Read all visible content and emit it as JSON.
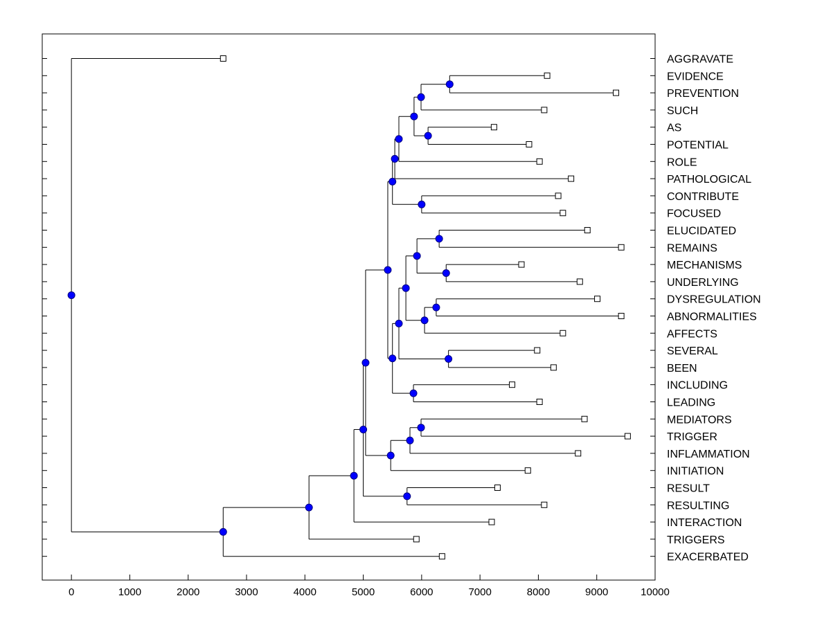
{
  "chart_data": {
    "type": "dendrogram",
    "title": "",
    "xlabel": "",
    "ylabel": "",
    "xlim": [
      -500,
      10000
    ],
    "xticks": [
      0,
      1000,
      2000,
      3000,
      4000,
      5000,
      6000,
      7000,
      8000,
      9000,
      10000
    ],
    "grid": false,
    "leaves": [
      {
        "label": "AGGRAVATE",
        "x": 2600
      },
      {
        "label": "EVIDENCE",
        "x": 8150
      },
      {
        "label": "PREVENTION",
        "x": 9330
      },
      {
        "label": "SUCH",
        "x": 8100
      },
      {
        "label": "AS",
        "x": 7240
      },
      {
        "label": "POTENTIAL",
        "x": 7840
      },
      {
        "label": "ROLE",
        "x": 8020
      },
      {
        "label": "PATHOLOGICAL",
        "x": 8560
      },
      {
        "label": "CONTRIBUTE",
        "x": 8340
      },
      {
        "label": "FOCUSED",
        "x": 8420
      },
      {
        "label": "ELUCIDATED",
        "x": 8840
      },
      {
        "label": "REMAINS",
        "x": 9420
      },
      {
        "label": "MECHANISMS",
        "x": 7710
      },
      {
        "label": "UNDERLYING",
        "x": 8710
      },
      {
        "label": "DYSREGULATION",
        "x": 9010
      },
      {
        "label": "ABNORMALITIES",
        "x": 9420
      },
      {
        "label": "AFFECTS",
        "x": 8420
      },
      {
        "label": "SEVERAL",
        "x": 7980
      },
      {
        "label": "BEEN",
        "x": 8260
      },
      {
        "label": "INCLUDING",
        "x": 7550
      },
      {
        "label": "LEADING",
        "x": 8020
      },
      {
        "label": "MEDIATORS",
        "x": 8790
      },
      {
        "label": "TRIGGER",
        "x": 9530
      },
      {
        "label": "INFLAMMATION",
        "x": 8680
      },
      {
        "label": "INITIATION",
        "x": 7820
      },
      {
        "label": "RESULT",
        "x": 7300
      },
      {
        "label": "RESULTING",
        "x": 8100
      },
      {
        "label": "INTERACTION",
        "x": 7200
      },
      {
        "label": "TRIGGERS",
        "x": 5910
      },
      {
        "label": "EXACERBATED",
        "x": 6350
      }
    ],
    "merges": [
      {
        "id": "n1",
        "x": 6480,
        "children": [
          "EVIDENCE",
          "PREVENTION"
        ]
      },
      {
        "id": "n2",
        "x": 5990,
        "children": [
          "n1",
          "SUCH"
        ]
      },
      {
        "id": "n3",
        "x": 6110,
        "children": [
          "AS",
          "POTENTIAL"
        ]
      },
      {
        "id": "n4",
        "x": 5870,
        "children": [
          "n2",
          "n3"
        ]
      },
      {
        "id": "n5",
        "x": 5610,
        "children": [
          "n4",
          "ROLE"
        ]
      },
      {
        "id": "n6",
        "x": 5540,
        "children": [
          "n5",
          "PATHOLOGICAL"
        ]
      },
      {
        "id": "n7",
        "x": 6000,
        "children": [
          "CONTRIBUTE",
          "FOCUSED"
        ]
      },
      {
        "id": "n8",
        "x": 5500,
        "children": [
          "n6",
          "n7"
        ]
      },
      {
        "id": "n9",
        "x": 6300,
        "children": [
          "ELUCIDATED",
          "REMAINS"
        ]
      },
      {
        "id": "n10",
        "x": 6420,
        "children": [
          "MECHANISMS",
          "UNDERLYING"
        ]
      },
      {
        "id": "n11",
        "x": 5920,
        "children": [
          "n9",
          "n10"
        ]
      },
      {
        "id": "n12",
        "x": 6250,
        "children": [
          "DYSREGULATION",
          "ABNORMALITIES"
        ]
      },
      {
        "id": "n13",
        "x": 6050,
        "children": [
          "n12",
          "AFFECTS"
        ]
      },
      {
        "id": "n14",
        "x": 5730,
        "children": [
          "n11",
          "n13"
        ]
      },
      {
        "id": "n15",
        "x": 6460,
        "children": [
          "SEVERAL",
          "BEEN"
        ]
      },
      {
        "id": "n16",
        "x": 5610,
        "children": [
          "n14",
          "n15"
        ]
      },
      {
        "id": "n17",
        "x": 5860,
        "children": [
          "INCLUDING",
          "LEADING"
        ]
      },
      {
        "id": "n18",
        "x": 5500,
        "children": [
          "n16",
          "n17"
        ]
      },
      {
        "id": "n19",
        "x": 5420,
        "children": [
          "n8",
          "n18"
        ]
      },
      {
        "id": "n20",
        "x": 5990,
        "children": [
          "MEDIATORS",
          "TRIGGER"
        ]
      },
      {
        "id": "n21",
        "x": 5800,
        "children": [
          "n20",
          "INFLAMMATION"
        ]
      },
      {
        "id": "n22",
        "x": 5470,
        "children": [
          "n21",
          "INITIATION"
        ]
      },
      {
        "id": "n23",
        "x": 5040,
        "children": [
          "n19",
          "n22"
        ]
      },
      {
        "id": "n24",
        "x": 5750,
        "children": [
          "RESULT",
          "RESULTING"
        ]
      },
      {
        "id": "n25",
        "x": 5000,
        "children": [
          "n23",
          "n24"
        ]
      },
      {
        "id": "n26",
        "x": 4840,
        "children": [
          "n25",
          "INTERACTION"
        ]
      },
      {
        "id": "n27",
        "x": 4070,
        "children": [
          "n26",
          "TRIGGERS"
        ]
      },
      {
        "id": "n28",
        "x": 2600,
        "children": [
          "n27",
          "EXACERBATED"
        ]
      },
      {
        "id": "n29",
        "x": 0,
        "children": [
          "AGGRAVATE",
          "n28"
        ]
      }
    ],
    "colors": {
      "node_fill": "#0000ff",
      "node_stroke": "#000080",
      "leaf_fill": "#ffffff",
      "line": "#000000"
    }
  }
}
